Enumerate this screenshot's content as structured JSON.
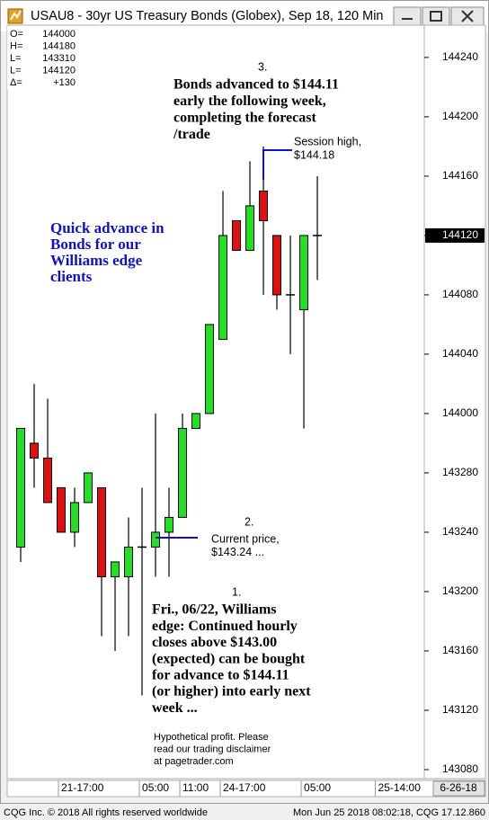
{
  "window_title": "USAU8 - 30yr US Treasury Bonds (Globex), Sep 18, 120 Min",
  "info_box": [
    [
      "O=",
      "144000"
    ],
    [
      "H=",
      "144180"
    ],
    [
      "L=",
      "143310"
    ],
    [
      "L=",
      "144120"
    ],
    [
      "Δ=",
      "+130"
    ]
  ],
  "footer": {
    "left": "CQG Inc. © 2018 All rights reserved worldwide",
    "right": "Mon Jun 25 2018 08:02:18, CQG 17.12.860"
  },
  "chart_data": {
    "type": "candlestick",
    "annotations": {
      "note_3": {
        "number": "3.",
        "lines": [
          "Bonds advanced to $144.11",
          "early the following week,",
          "completing the forecast",
          "/trade"
        ]
      },
      "session_high": {
        "lines": [
          "Session high,",
          "$144.18"
        ]
      },
      "promo": {
        "lines": [
          "Quick advance in",
          "Bonds for our",
          "Williams edge",
          "clients"
        ]
      },
      "note_2": {
        "number": "2.",
        "lines": [
          "Current price,",
          "$143.24 ..."
        ]
      },
      "note_1": {
        "number": "1.",
        "lines": [
          "Fri., 06/22, Williams",
          "edge: Continued hourly",
          "closes above $143.00",
          "(expected) can be bought",
          "for advance to $144.11",
          "(or higher) into early next",
          "week ..."
        ]
      },
      "disclaimer": {
        "lines": [
          "Hypothetical profit.  Please",
          "read our trading disclaimer",
          "at pagetrader.com"
        ]
      }
    },
    "up_color": "#22e022",
    "down_color": "#e01010",
    "open": [
      143.71875,
      143.9375,
      143.90625,
      143.84375,
      143.75,
      143.8125,
      143.84375,
      143.65625,
      143.65625,
      143.71875,
      143.71875,
      143.75,
      143.78125,
      143.96875,
      144,
      144.15625,
      144.40625,
      144.34375,
      144.46875,
      144.375,
      144.25,
      144.21875,
      144.375
    ],
    "high": [
      143.96875,
      144.0625,
      144.03125,
      143.84375,
      143.84375,
      143.875,
      143.84375,
      143.6875,
      143.78125,
      143.84375,
      144,
      143.84375,
      144,
      144,
      144.1875,
      144.46875,
      144.40625,
      144.53125,
      144.5625,
      144.375,
      144.375,
      144.375,
      144.5
    ],
    "low": [
      143.6875,
      143.84375,
      143.8125,
      143.75,
      143.71875,
      143.8125,
      143.53125,
      143.5,
      143.53125,
      143.40625,
      143.65625,
      143.65625,
      143.78125,
      143.96875,
      144,
      144.15625,
      144.34375,
      144.34375,
      144.25,
      144.21875,
      144.125,
      143.96875,
      144.28125
    ],
    "close": [
      143.96875,
      143.90625,
      143.8125,
      143.75,
      143.8125,
      143.875,
      143.65625,
      143.6875,
      143.71875,
      143.71875,
      143.75,
      143.78125,
      143.96875,
      144,
      144.1875,
      144.375,
      144.34375,
      144.4375,
      144.40625,
      144.25,
      144.25,
      144.375,
      144.375
    ],
    "xlim": [
      -1,
      29.93
    ],
    "xticks": [
      {
        "value": 3,
        "label": "21-17:00"
      },
      {
        "value": 9,
        "label": "05:00"
      },
      {
        "value": 12,
        "label": "11:00"
      },
      {
        "value": 15,
        "label": "24-17:00"
      },
      {
        "value": 21,
        "label": "05:00"
      },
      {
        "value": 26.5,
        "label": "25-14:00"
      }
    ],
    "date_label": "6-26-18",
    "ylim": [
      143.231,
      144.818
    ],
    "yticks": [
      {
        "value": 143.25,
        "label": "143080"
      },
      {
        "value": 143.375,
        "label": "143120"
      },
      {
        "value": 143.5,
        "label": "143160"
      },
      {
        "value": 143.625,
        "label": "143200"
      },
      {
        "value": 143.75,
        "label": "143240"
      },
      {
        "value": 143.875,
        "label": "143280"
      },
      {
        "value": 144,
        "label": "144000"
      },
      {
        "value": 144.125,
        "label": "144040"
      },
      {
        "value": 144.25,
        "label": "144080"
      },
      {
        "value": 144.375,
        "label": "144120"
      },
      {
        "value": 144.5,
        "label": "144160"
      },
      {
        "value": 144.625,
        "label": "144200"
      },
      {
        "value": 144.75,
        "label": "144240"
      }
    ],
    "last_price": {
      "value": 144.375,
      "label": "144120"
    }
  }
}
